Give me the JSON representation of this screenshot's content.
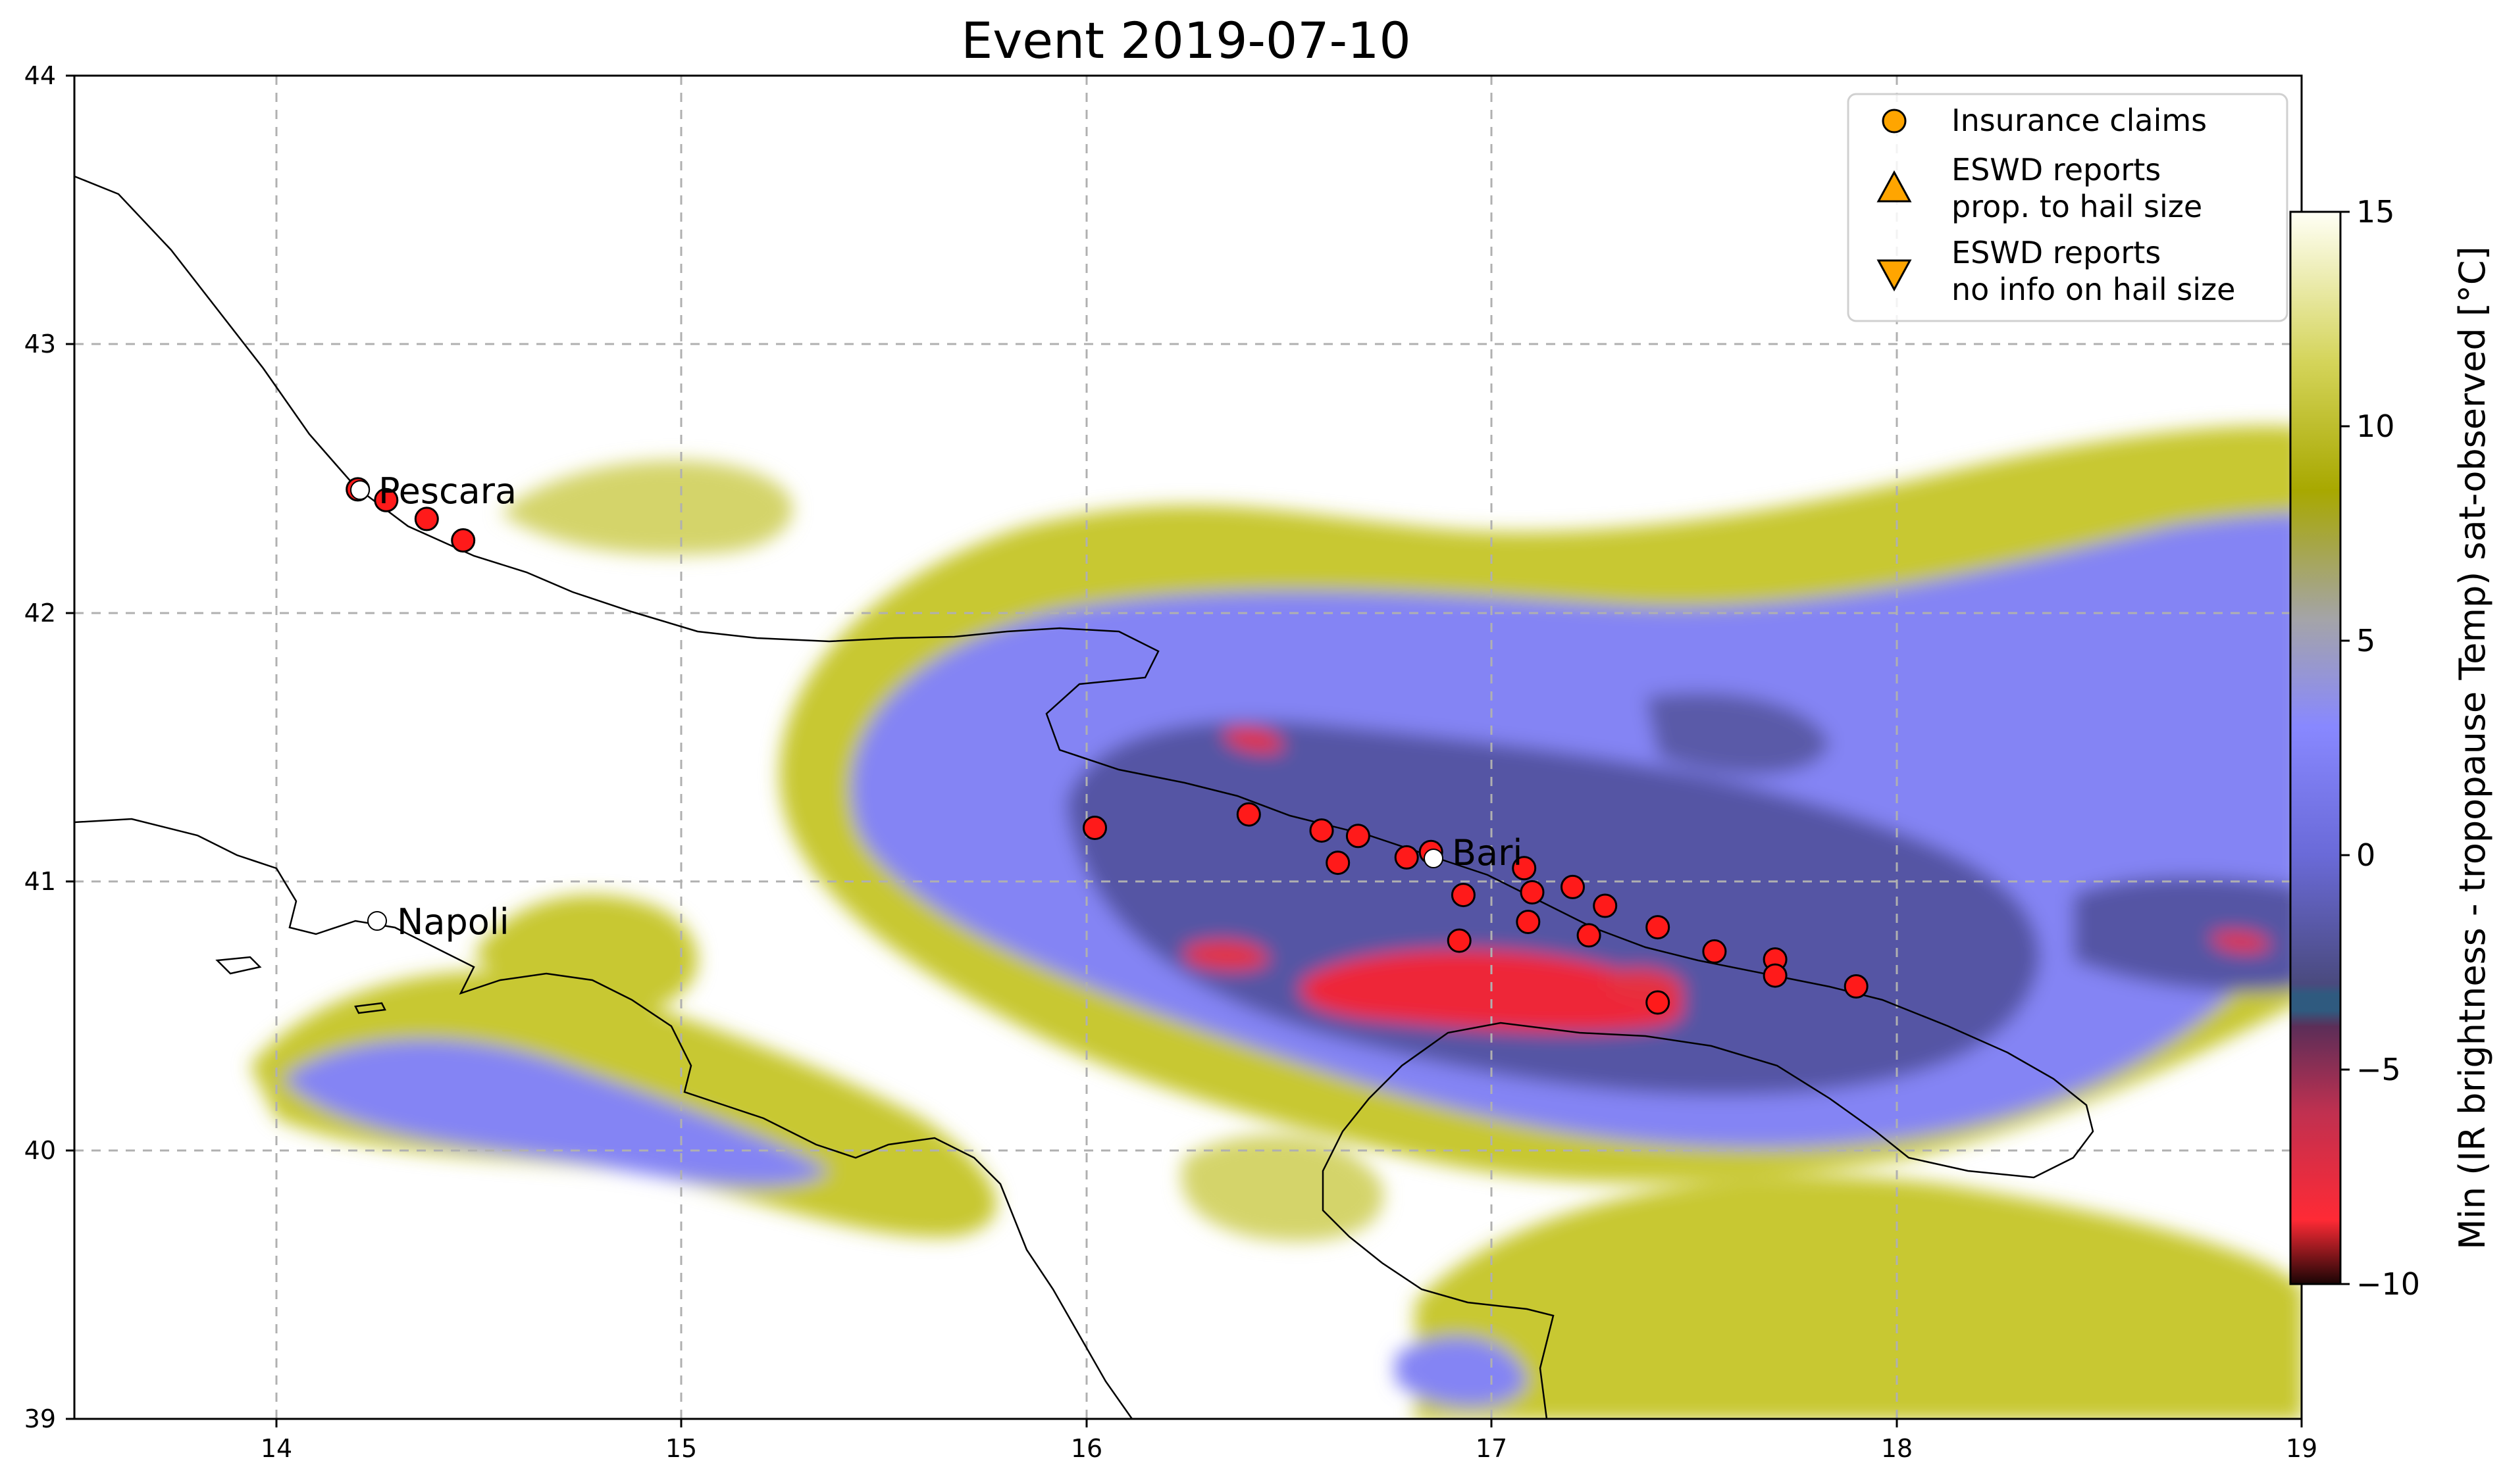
{
  "title": "Event 2019-07-10",
  "axes": {
    "x_ticks": [
      "14",
      "15",
      "16",
      "17",
      "18",
      "19"
    ],
    "y_ticks": [
      "39",
      "40",
      "41",
      "42",
      "43",
      "44"
    ]
  },
  "colorbar": {
    "label": "Min (IR brightness - tropopause Temp) sat-observed [°C]",
    "ticks": [
      "15",
      "10",
      "5",
      "0",
      "−5",
      "−10"
    ],
    "colors": [
      "#1a0505",
      "#ff2a35",
      "#5c2e58",
      "#2f5a7f",
      "#4a4a7e",
      "#7d7df0",
      "#8888ff",
      "#a4a4a8",
      "#a8a800",
      "#d4d45a",
      "#fffff5"
    ]
  },
  "legend": {
    "items": [
      {
        "label": "Insurance claims",
        "marker": "circle"
      },
      {
        "label": "ESWD reports\n prop. to hail size",
        "marker": "triangle-up"
      },
      {
        "label": "ESWD reports\n no info on hail size",
        "marker": "triangle-down"
      }
    ],
    "marker_color": "#ffa500"
  },
  "cities": [
    {
      "name": "Pescara"
    },
    {
      "name": "Napoli"
    },
    {
      "name": "Bari"
    }
  ],
  "chart_data": {
    "type": "scatter",
    "xlim": [
      13.5,
      19
    ],
    "ylim": [
      39,
      44
    ],
    "grid": true,
    "claim_color": "#ff1a1a",
    "claims": [
      [
        14.2,
        42.46
      ],
      [
        14.27,
        42.42
      ],
      [
        14.37,
        42.35
      ],
      [
        14.46,
        42.27
      ],
      [
        16.02,
        41.2
      ],
      [
        16.4,
        41.25
      ],
      [
        16.58,
        41.19
      ],
      [
        16.62,
        41.07
      ],
      [
        16.67,
        41.17
      ],
      [
        16.79,
        41.09
      ],
      [
        16.85,
        41.11
      ],
      [
        16.93,
        40.95
      ],
      [
        16.92,
        40.78
      ],
      [
        17.08,
        41.05
      ],
      [
        17.1,
        40.96
      ],
      [
        17.09,
        40.85
      ],
      [
        17.2,
        40.98
      ],
      [
        17.24,
        40.8
      ],
      [
        17.28,
        40.91
      ],
      [
        17.41,
        40.83
      ],
      [
        17.41,
        40.55
      ],
      [
        17.55,
        40.74
      ],
      [
        17.7,
        40.71
      ],
      [
        17.7,
        40.65
      ],
      [
        17.9,
        40.61
      ]
    ]
  }
}
